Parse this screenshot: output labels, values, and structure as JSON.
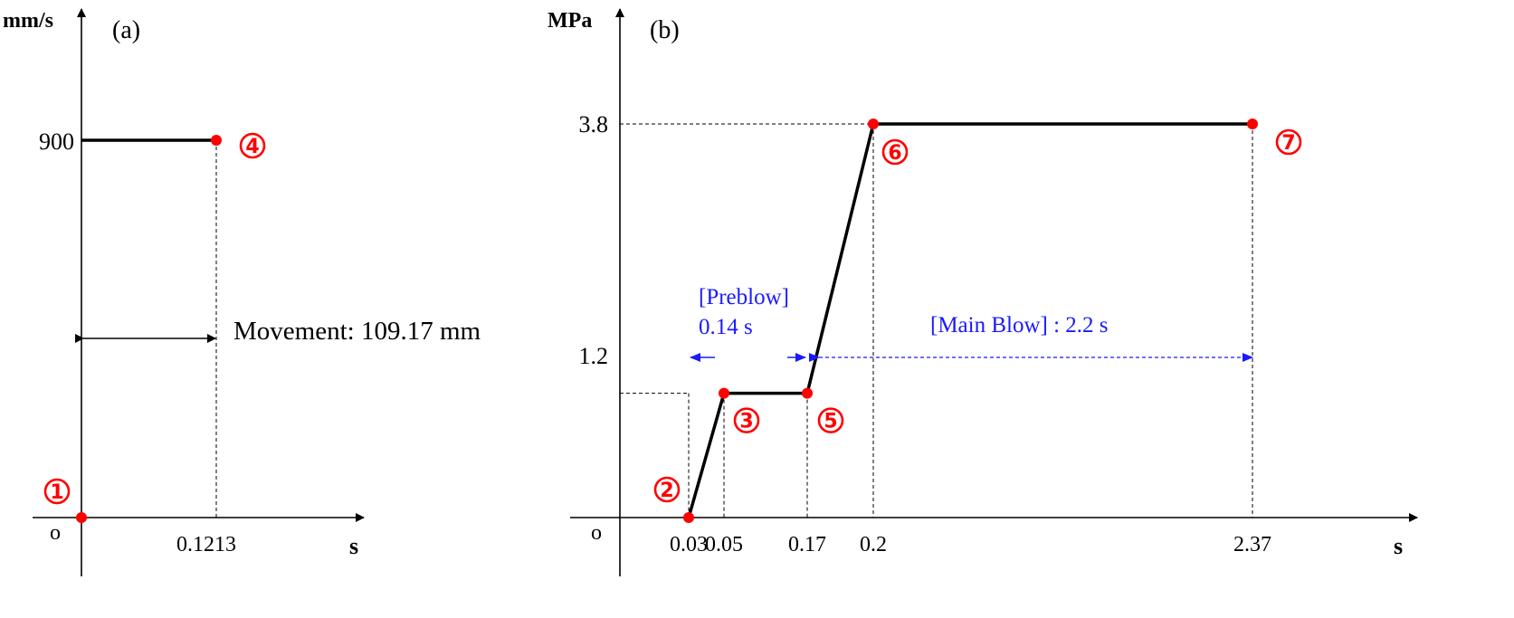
{
  "chart_data": [
    {
      "panel": "(a)",
      "type": "line",
      "ylabel": "mm/s",
      "xlabel": "s",
      "origin_label": "o",
      "yticks": [
        "900"
      ],
      "xticks": [
        "0.1213"
      ],
      "x": [
        0,
        0.1213
      ],
      "y": [
        900,
        900
      ],
      "points": [
        {
          "label": "①",
          "x": 0,
          "y": 0
        },
        {
          "label": "④",
          "x": 0.1213,
          "y": 900
        }
      ],
      "annotation": "Movement: 109.17 mm"
    },
    {
      "panel": "(b)",
      "type": "line",
      "ylabel": "MPa",
      "xlabel": "s",
      "origin_label": "o",
      "yticks": [
        "3.8",
        "1.2"
      ],
      "xticks": [
        "0.03",
        "0.05",
        "0.17",
        "0.2",
        "2.37"
      ],
      "x": [
        0.03,
        0.05,
        0.17,
        0.2,
        2.37
      ],
      "y": [
        0,
        1.2,
        1.2,
        3.8,
        3.8
      ],
      "points": [
        {
          "label": "②",
          "x": 0.03,
          "y": 0
        },
        {
          "label": "③",
          "x": 0.05,
          "y": 1.2
        },
        {
          "label": "⑤",
          "x": 0.17,
          "y": 1.2
        },
        {
          "label": "⑥",
          "x": 0.2,
          "y": 3.8
        },
        {
          "label": "⑦",
          "x": 2.37,
          "y": 3.8
        }
      ],
      "annotations": {
        "preblow_title": "[Preblow]",
        "preblow_value": "0.14 s",
        "main_blow": "[Main Blow] : 2.2 s"
      }
    }
  ],
  "colors": {
    "marker": "#ff0000",
    "annotation": "#1a1aff",
    "line": "#000000"
  }
}
